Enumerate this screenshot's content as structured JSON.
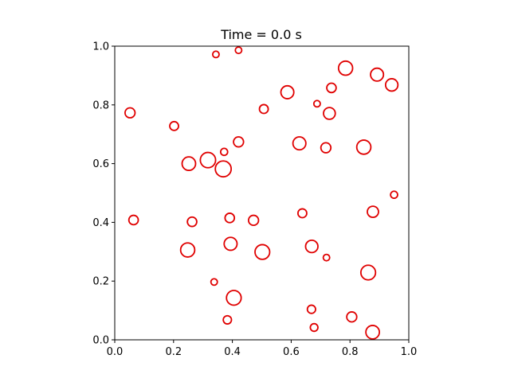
{
  "chart_data": {
    "type": "scatter",
    "title": "Time = 0.0 s",
    "xlabel": "",
    "ylabel": "",
    "xlim": [
      0,
      1
    ],
    "ylim": [
      0,
      1
    ],
    "xticks": [
      0.0,
      0.2,
      0.4,
      0.6,
      0.8,
      1.0
    ],
    "yticks": [
      0.0,
      0.2,
      0.4,
      0.6,
      0.8,
      1.0
    ],
    "xtick_labels": [
      "0.0",
      "0.2",
      "0.4",
      "0.6",
      "0.8",
      "1.0"
    ],
    "ytick_labels": [
      "0.0",
      "0.2",
      "0.4",
      "0.6",
      "0.8",
      "1.0"
    ],
    "grid": false,
    "marker": "open-circle",
    "color": "#e00000",
    "points": [
      {
        "x": 0.344,
        "y": 0.972,
        "r": 0.011
      },
      {
        "x": 0.421,
        "y": 0.986,
        "r": 0.011
      },
      {
        "x": 0.785,
        "y": 0.925,
        "r": 0.024
      },
      {
        "x": 0.892,
        "y": 0.903,
        "r": 0.022
      },
      {
        "x": 0.942,
        "y": 0.868,
        "r": 0.021
      },
      {
        "x": 0.737,
        "y": 0.858,
        "r": 0.016
      },
      {
        "x": 0.587,
        "y": 0.843,
        "r": 0.022
      },
      {
        "x": 0.507,
        "y": 0.786,
        "r": 0.015
      },
      {
        "x": 0.688,
        "y": 0.804,
        "r": 0.011
      },
      {
        "x": 0.73,
        "y": 0.771,
        "r": 0.02
      },
      {
        "x": 0.052,
        "y": 0.773,
        "r": 0.017
      },
      {
        "x": 0.202,
        "y": 0.728,
        "r": 0.015
      },
      {
        "x": 0.421,
        "y": 0.674,
        "r": 0.017
      },
      {
        "x": 0.628,
        "y": 0.669,
        "r": 0.022
      },
      {
        "x": 0.718,
        "y": 0.654,
        "r": 0.017
      },
      {
        "x": 0.847,
        "y": 0.656,
        "r": 0.024
      },
      {
        "x": 0.372,
        "y": 0.64,
        "r": 0.012
      },
      {
        "x": 0.252,
        "y": 0.6,
        "r": 0.023
      },
      {
        "x": 0.317,
        "y": 0.612,
        "r": 0.026
      },
      {
        "x": 0.369,
        "y": 0.582,
        "r": 0.027
      },
      {
        "x": 0.95,
        "y": 0.494,
        "r": 0.012
      },
      {
        "x": 0.878,
        "y": 0.436,
        "r": 0.019
      },
      {
        "x": 0.638,
        "y": 0.431,
        "r": 0.015
      },
      {
        "x": 0.391,
        "y": 0.415,
        "r": 0.016
      },
      {
        "x": 0.472,
        "y": 0.407,
        "r": 0.017
      },
      {
        "x": 0.064,
        "y": 0.408,
        "r": 0.016
      },
      {
        "x": 0.263,
        "y": 0.402,
        "r": 0.016
      },
      {
        "x": 0.394,
        "y": 0.327,
        "r": 0.022
      },
      {
        "x": 0.502,
        "y": 0.299,
        "r": 0.025
      },
      {
        "x": 0.67,
        "y": 0.318,
        "r": 0.021
      },
      {
        "x": 0.248,
        "y": 0.306,
        "r": 0.024
      },
      {
        "x": 0.72,
        "y": 0.28,
        "r": 0.011
      },
      {
        "x": 0.862,
        "y": 0.229,
        "r": 0.025
      },
      {
        "x": 0.338,
        "y": 0.197,
        "r": 0.011
      },
      {
        "x": 0.405,
        "y": 0.143,
        "r": 0.025
      },
      {
        "x": 0.669,
        "y": 0.104,
        "r": 0.014
      },
      {
        "x": 0.383,
        "y": 0.068,
        "r": 0.014
      },
      {
        "x": 0.806,
        "y": 0.078,
        "r": 0.017
      },
      {
        "x": 0.678,
        "y": 0.042,
        "r": 0.013
      },
      {
        "x": 0.877,
        "y": 0.026,
        "r": 0.023
      }
    ]
  }
}
